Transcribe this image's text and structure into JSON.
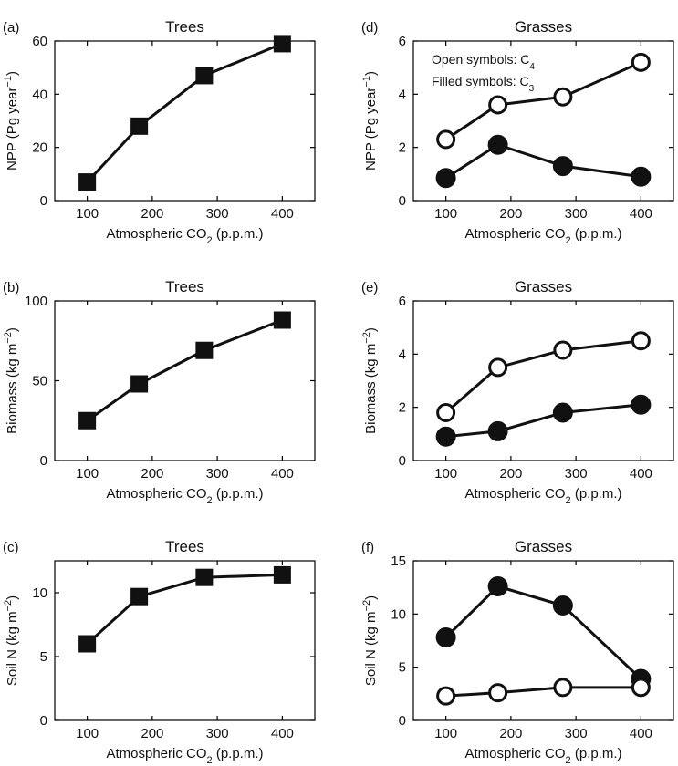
{
  "chart_data": [
    {
      "panel": "(a)",
      "title": "Trees",
      "type": "line",
      "xlabel": "Atmospheric CO",
      "xlabel_sub": "2",
      "xlabel_tail": " (p.p.m.)",
      "ylabel": "NPP (Pg year",
      "ylabel_sup": "−1",
      "ylabel_tail": ")",
      "xlim": [
        50,
        450
      ],
      "ylim": [
        0,
        60
      ],
      "xticks": [
        100,
        200,
        300,
        400
      ],
      "yticks": [
        0,
        20,
        40,
        60
      ],
      "series": [
        {
          "marker": "square",
          "x": [
            100,
            180,
            280,
            400
          ],
          "values": [
            7,
            28,
            47,
            59
          ]
        }
      ]
    },
    {
      "panel": "(b)",
      "title": "Trees",
      "type": "line",
      "xlabel": "Atmospheric CO",
      "xlabel_sub": "2",
      "xlabel_tail": " (p.p.m.)",
      "ylabel": "Biomass (kg m",
      "ylabel_sup": "−2",
      "ylabel_tail": ")",
      "xlim": [
        50,
        450
      ],
      "ylim": [
        0,
        100
      ],
      "xticks": [
        100,
        200,
        300,
        400
      ],
      "yticks": [
        0,
        50,
        100
      ],
      "series": [
        {
          "marker": "square",
          "x": [
            100,
            180,
            280,
            400
          ],
          "values": [
            25,
            48,
            69,
            88
          ]
        }
      ]
    },
    {
      "panel": "(c)",
      "title": "Trees",
      "type": "line",
      "xlabel": "Atmospheric CO",
      "xlabel_sub": "2",
      "xlabel_tail": " (p.p.m.)",
      "ylabel": "Soil N (kg m",
      "ylabel_sup": "−2",
      "ylabel_tail": ")",
      "xlim": [
        50,
        450
      ],
      "ylim": [
        0,
        12.5
      ],
      "xticks": [
        100,
        200,
        300,
        400
      ],
      "yticks": [
        0,
        5,
        10
      ],
      "series": [
        {
          "marker": "square",
          "x": [
            100,
            180,
            280,
            400
          ],
          "values": [
            6,
            9.7,
            11.2,
            11.4
          ]
        }
      ]
    },
    {
      "panel": "(d)",
      "title": "Grasses",
      "type": "line",
      "xlabel": "Atmospheric CO",
      "xlabel_sub": "2",
      "xlabel_tail": " (p.p.m.)",
      "ylabel": "NPP (Pg year",
      "ylabel_sup": "−1",
      "ylabel_tail": ")",
      "xlim": [
        50,
        450
      ],
      "ylim": [
        0,
        6
      ],
      "xticks": [
        100,
        200,
        300,
        400
      ],
      "yticks": [
        0,
        2,
        4,
        6
      ],
      "legend": {
        "open_text": "Open symbols: C",
        "open_sub": "4",
        "filled_text": "Filled symbols: C",
        "filled_sub": "3",
        "placement": "top-left"
      },
      "series": [
        {
          "marker": "open-circle",
          "x": [
            100,
            180,
            280,
            400
          ],
          "values": [
            2.3,
            3.6,
            3.9,
            5.2
          ]
        },
        {
          "marker": "filled-circle",
          "x": [
            100,
            180,
            280,
            400
          ],
          "values": [
            0.85,
            2.1,
            1.3,
            0.9
          ]
        }
      ]
    },
    {
      "panel": "(e)",
      "title": "Grasses",
      "type": "line",
      "xlabel": "Atmospheric CO",
      "xlabel_sub": "2",
      "xlabel_tail": " (p.p.m.)",
      "ylabel": "Biomass (kg m",
      "ylabel_sup": "−2",
      "ylabel_tail": ")",
      "xlim": [
        50,
        450
      ],
      "ylim": [
        0,
        6
      ],
      "xticks": [
        100,
        200,
        300,
        400
      ],
      "yticks": [
        0,
        2,
        4,
        6
      ],
      "series": [
        {
          "marker": "open-circle",
          "x": [
            100,
            180,
            280,
            400
          ],
          "values": [
            1.8,
            3.5,
            4.15,
            4.5
          ]
        },
        {
          "marker": "filled-circle",
          "x": [
            100,
            180,
            280,
            400
          ],
          "values": [
            0.9,
            1.1,
            1.8,
            2.1
          ]
        }
      ]
    },
    {
      "panel": "(f)",
      "title": "Grasses",
      "type": "line",
      "xlabel": "Atmospheric CO",
      "xlabel_sub": "2",
      "xlabel_tail": " (p.p.m.)",
      "ylabel": "Soil N (kg m",
      "ylabel_sup": "−2",
      "ylabel_tail": ")",
      "xlim": [
        50,
        450
      ],
      "ylim": [
        0,
        15
      ],
      "xticks": [
        100,
        200,
        300,
        400
      ],
      "yticks": [
        0,
        5,
        10,
        15
      ],
      "series": [
        {
          "marker": "filled-circle",
          "x": [
            100,
            180,
            280,
            400
          ],
          "values": [
            7.8,
            12.6,
            10.8,
            3.9
          ]
        },
        {
          "marker": "open-circle",
          "x": [
            100,
            180,
            280,
            400
          ],
          "values": [
            2.3,
            2.6,
            3.1,
            3.1
          ]
        }
      ]
    }
  ]
}
